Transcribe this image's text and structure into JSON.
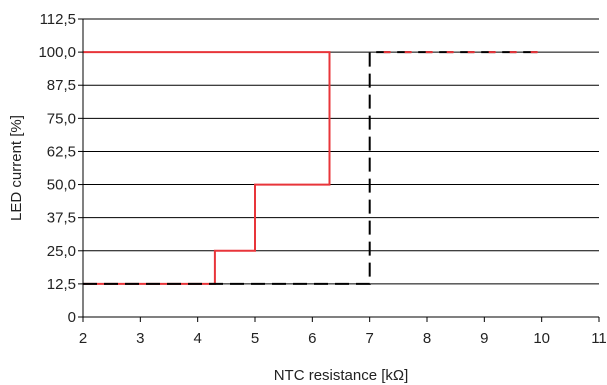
{
  "chart_data": {
    "type": "line",
    "title": "",
    "xlabel": "NTC resistance [kΩ]",
    "ylabel": "LED current [%]",
    "xlim": [
      2,
      11
    ],
    "ylim": [
      0,
      112.5
    ],
    "x_ticks": [
      2,
      3,
      4,
      5,
      6,
      7,
      8,
      9,
      10,
      11
    ],
    "y_ticks": [
      0,
      12.5,
      25,
      37.5,
      50,
      62.5,
      75,
      87.5,
      100,
      112.5
    ],
    "y_tick_labels": [
      "0",
      "12,5",
      "25,0",
      "37,5",
      "50,0",
      "62,5",
      "75,0",
      "87,5",
      "100,0",
      "112,5"
    ],
    "grid": "horizontal",
    "legend": "none",
    "series": [
      {
        "style": "solid",
        "color": "#e8353a",
        "points": [
          [
            2,
            100
          ],
          [
            6.3,
            100
          ],
          [
            6.3,
            50
          ],
          [
            5,
            50
          ],
          [
            5,
            25
          ],
          [
            4.3,
            25
          ],
          [
            4.3,
            12.5
          ],
          [
            2,
            12.5
          ]
        ]
      },
      {
        "style": "dashed",
        "color": "#000000",
        "points": [
          [
            2,
            12.5
          ],
          [
            7,
            12.5
          ],
          [
            7,
            100
          ],
          [
            10,
            100
          ]
        ]
      },
      {
        "style": "dashed-overlay",
        "color": "#e8353a",
        "points": [
          [
            7,
            100
          ],
          [
            10,
            100
          ]
        ]
      }
    ]
  }
}
